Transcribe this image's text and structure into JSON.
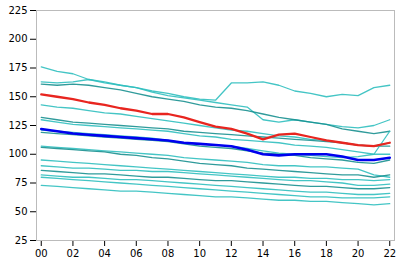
{
  "chart_data": {
    "type": "line",
    "x": [
      2000,
      2001,
      2002,
      2003,
      2004,
      2005,
      2006,
      2007,
      2008,
      2009,
      2010,
      2011,
      2012,
      2013,
      2014,
      2015,
      2016,
      2017,
      2018,
      2019,
      2020,
      2021,
      2022
    ],
    "series": [
      {
        "color": "#30bfbf",
        "values": [
          176,
          172,
          170,
          165,
          162,
          160,
          158,
          155,
          153,
          150,
          148,
          147,
          162,
          162,
          163,
          160,
          155,
          153,
          150,
          152,
          151,
          158,
          160
        ]
      },
      {
        "color": "#30bfbf",
        "values": [
          163,
          162,
          163,
          165,
          163,
          160,
          158,
          154,
          151,
          149,
          147,
          145,
          143,
          141,
          130,
          128,
          130,
          128,
          126,
          124,
          123,
          125,
          130
        ]
      },
      {
        "color": "#1a9090",
        "values": [
          161,
          160,
          161,
          160,
          158,
          156,
          153,
          150,
          148,
          146,
          143,
          141,
          140,
          138,
          135,
          132,
          130,
          128,
          126,
          122,
          120,
          118,
          120
        ]
      },
      {
        "color": "#30bfbf",
        "values": [
          143,
          141,
          140,
          138,
          136,
          135,
          133,
          131,
          129,
          127,
          125,
          123,
          121,
          120,
          118,
          116,
          115,
          113,
          112,
          110,
          108,
          107,
          110
        ]
      },
      {
        "color": "#1a9090",
        "values": [
          132,
          130,
          128,
          127,
          126,
          125,
          124,
          123,
          122,
          120,
          119,
          118,
          117,
          116,
          115,
          114,
          113,
          112,
          111,
          110,
          108,
          107,
          107
        ]
      },
      {
        "color": "#30bfbf",
        "values": [
          130,
          128,
          126,
          125,
          124,
          123,
          122,
          121,
          120,
          118,
          116,
          115,
          113,
          112,
          111,
          110,
          108,
          107,
          106,
          104,
          102,
          100,
          100
        ]
      },
      {
        "color": "#30bfbf",
        "values": [
          121,
          120,
          119,
          118,
          117,
          116,
          115,
          114,
          112,
          110,
          109,
          108,
          107,
          105,
          103,
          101,
          100,
          99,
          98,
          97,
          98,
          100,
          120
        ]
      },
      {
        "color": "#1a9090",
        "values": [
          119,
          118,
          117,
          116,
          115,
          114,
          113,
          112,
          111,
          109,
          107,
          106,
          105,
          103,
          101,
          100,
          99,
          97,
          96,
          95,
          93,
          92,
          95
        ]
      },
      {
        "color": "#30bfbf",
        "values": [
          107,
          106,
          105,
          104,
          103,
          102,
          101,
          100,
          99,
          97,
          96,
          95,
          94,
          93,
          91,
          90,
          90,
          89,
          89,
          88,
          87,
          82,
          80
        ]
      },
      {
        "color": "#1a9090",
        "values": [
          106,
          105,
          104,
          103,
          102,
          100,
          99,
          97,
          96,
          94,
          92,
          91,
          90,
          88,
          87,
          86,
          85,
          84,
          83,
          82,
          82,
          80,
          82
        ]
      },
      {
        "color": "#30bfbf",
        "values": [
          95,
          94,
          93,
          92,
          91,
          90,
          89,
          88,
          87,
          86,
          85,
          84,
          83,
          82,
          81,
          80,
          80,
          79,
          79,
          78,
          78,
          77,
          78
        ]
      },
      {
        "color": "#30bfbf",
        "values": [
          90,
          89,
          88,
          88,
          87,
          86,
          86,
          85,
          85,
          84,
          83,
          82,
          81,
          80,
          79,
          78,
          77,
          77,
          76,
          75,
          73,
          73,
          74
        ]
      },
      {
        "color": "#1a9090",
        "values": [
          86,
          85,
          84,
          83,
          83,
          82,
          81,
          80,
          80,
          79,
          78,
          77,
          77,
          76,
          75,
          74,
          73,
          72,
          72,
          71,
          70,
          70,
          71
        ]
      },
      {
        "color": "#30bfbf",
        "values": [
          82,
          81,
          80,
          80,
          79,
          78,
          78,
          77,
          76,
          75,
          74,
          73,
          72,
          71,
          70,
          69,
          68,
          67,
          67,
          66,
          65,
          65,
          66
        ]
      },
      {
        "color": "#30bfbf",
        "values": [
          80,
          79,
          78,
          77,
          76,
          75,
          74,
          73,
          72,
          71,
          70,
          69,
          68,
          67,
          66,
          65,
          64,
          63,
          63,
          62,
          62,
          62,
          63
        ]
      },
      {
        "color": "#30bfbf",
        "values": [
          73,
          72,
          71,
          70,
          69,
          68,
          68,
          67,
          66,
          65,
          64,
          63,
          63,
          62,
          61,
          60,
          60,
          59,
          59,
          58,
          57,
          56,
          57
        ]
      },
      {
        "color": "#e8251f",
        "values": [
          152,
          150,
          148,
          145,
          143,
          140,
          138,
          135,
          135,
          132,
          128,
          124,
          122,
          118,
          113,
          117,
          118,
          115,
          112,
          110,
          108,
          107,
          110
        ]
      },
      {
        "color": "#0000ee",
        "values": [
          122,
          120,
          118,
          117,
          116,
          115,
          114,
          113,
          112,
          110,
          109,
          108,
          107,
          104,
          100,
          99,
          100,
          100,
          100,
          98,
          95,
          95,
          97
        ]
      }
    ],
    "xlim": [
      1999.7,
      2022.3
    ],
    "xticks": [
      {
        "value": 2000,
        "label": "00"
      },
      {
        "value": 2002,
        "label": "02"
      },
      {
        "value": 2004,
        "label": "04"
      },
      {
        "value": 2006,
        "label": "06"
      },
      {
        "value": 2008,
        "label": "08"
      },
      {
        "value": 2010,
        "label": "10"
      },
      {
        "value": 2012,
        "label": "12"
      },
      {
        "value": 2014,
        "label": "14"
      },
      {
        "value": 2016,
        "label": "16"
      },
      {
        "value": 2018,
        "label": "18"
      },
      {
        "value": 2020,
        "label": "20"
      },
      {
        "value": 2022,
        "label": "22"
      }
    ],
    "ylim": [
      25,
      225
    ],
    "yticks": [
      25,
      50,
      75,
      100,
      125,
      150,
      175,
      200,
      225
    ],
    "grid": false,
    "legend": false
  }
}
